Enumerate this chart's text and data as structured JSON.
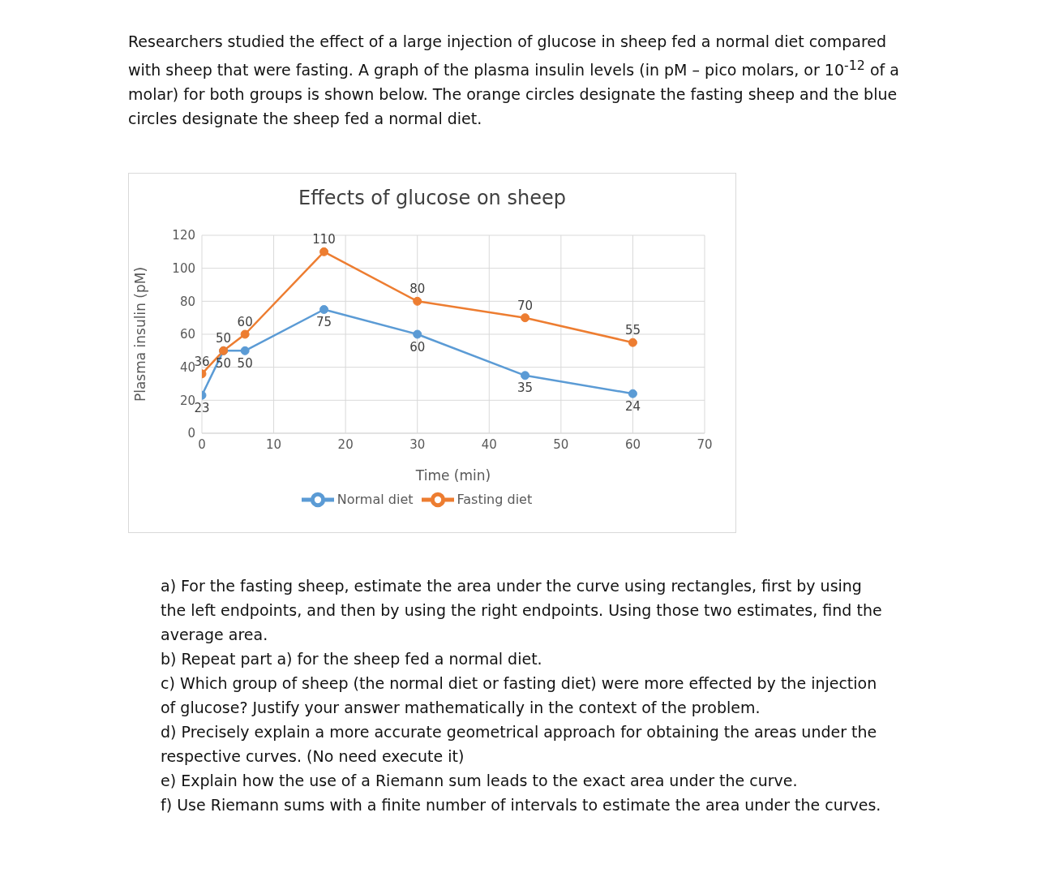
{
  "chart_data": {
    "type": "line",
    "title": "Effects of glucose on sheep",
    "xlabel": "Time (min)",
    "ylabel": "Plasma insulin (pM)",
    "annotations": [
      "Researchers studied the effect of a large injection of glucose in sheep fed a normal diet compared with sheep that were fasting. A graph of the plasma insulin levels (in pM – pico molars, or 10$^{-12}$ of a molar) for both groups is shown below. The orange circles designate the fasting sheep and the blue circles designate the sheep fed a normal diet.",
      "a) For the fasting sheep, estimate the area under the curve using rectangles, first by using the left endpoints, and then by using the right endpoints. Using those two estimates, find the average area.",
      "b) Repeat part a) for the sheep fed a normal diet.",
      "c) Which group of sheep (the normal diet or fasting diet) were more effected by the injection of glucose? Justify your answer mathematically in the context of the problem.",
      "d) Precisely explain a more accurate geometrical approach for obtaining the areas under the respective curves. (No need execute it)",
      "e) Explain how the use of a Riemann sum leads to the exact area under the curve.",
      "f) Use Riemann sums with a finite number of intervals to estimate the area under the curves."
    ],
    "series": [
      {
        "name": "Normal diet",
        "color": "#5b9bd5",
        "x": [
          0,
          3,
          6,
          17,
          30,
          45,
          60
        ],
        "values": [
          23,
          50,
          50,
          75,
          60,
          35,
          24
        ]
      },
      {
        "name": "Fasting diet",
        "color": "#ed7d31",
        "x": [
          0,
          3,
          6,
          17,
          30,
          45,
          60
        ],
        "values": [
          36,
          50,
          60,
          110,
          80,
          70,
          55
        ]
      }
    ],
    "xlim": [
      0,
      70
    ],
    "xticks": [
      0,
      10,
      20,
      30,
      40,
      50,
      60,
      70
    ],
    "ylim": [
      0,
      120
    ],
    "yticks": [
      0,
      20,
      40,
      60,
      80,
      100,
      120
    ],
    "grid": true,
    "legend": "bottom",
    "marker": "circle",
    "data_labels": true
  }
}
